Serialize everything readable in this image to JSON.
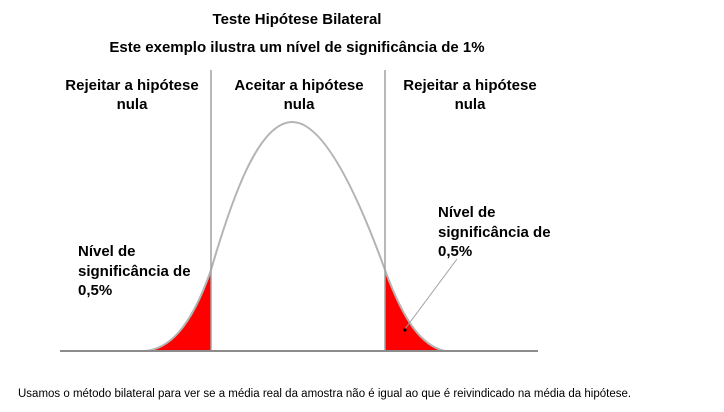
{
  "title": "Teste Hipótese Bilateral",
  "subtitle": "Este exemplo ilustra um nível de significância de 1%",
  "regions": {
    "left": "Rejeitar a hipótese nula",
    "middle": "Aceitar a hipótese nula",
    "right": "Rejeitar a hipótese nula"
  },
  "significance": {
    "left": "Nível de\nsignificância de\n0,5%",
    "right": "Nível de\nsignificância de\n0,5%"
  },
  "caption": "Usamos o método bilateral para ver se a média real da amostra não é igual ao que é reivindicado na média da hipótese.",
  "colors": {
    "tail_fill": "#ff0000",
    "curve": "#b4b4b4",
    "divider": "#a0a0a0",
    "baseline": "#8c8c8c"
  }
}
